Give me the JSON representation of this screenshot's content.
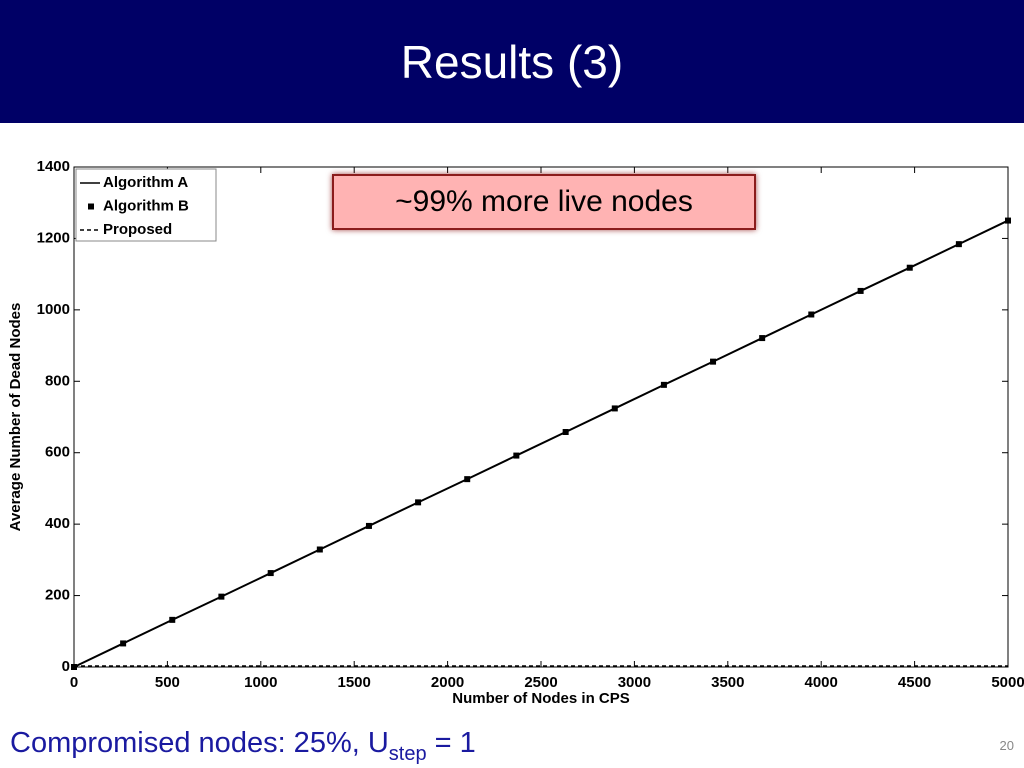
{
  "slide": {
    "title": "Results (3)",
    "caption": {
      "main": "Compromised nodes: 25%, U",
      "subscript": "step",
      "rest": " = 1"
    },
    "page_number": "20"
  },
  "chart_data": {
    "type": "line",
    "xlabel": "Number of Nodes in CPS",
    "ylabel": "Average Number of Dead Nodes",
    "annotation": "~99% more live nodes",
    "x": [
      0,
      263,
      526,
      789,
      1053,
      1316,
      1579,
      1842,
      2105,
      2368,
      2632,
      2895,
      3158,
      3421,
      3684,
      3947,
      4211,
      4474,
      4737,
      5000
    ],
    "series": [
      {
        "name": "Algorithm A",
        "color": "#000000",
        "style": "solid",
        "values": [
          0,
          66,
          132,
          197,
          263,
          329,
          395,
          461,
          526,
          592,
          658,
          724,
          790,
          855,
          921,
          987,
          1053,
          1118,
          1184,
          1250
        ]
      },
      {
        "name": "Algorithm B",
        "color": "#000000",
        "style": "markers",
        "values": [
          0,
          66,
          132,
          197,
          263,
          329,
          395,
          461,
          526,
          592,
          658,
          724,
          790,
          855,
          921,
          987,
          1053,
          1118,
          1184,
          1250
        ]
      },
      {
        "name": "Proposed",
        "color": "#000000",
        "style": "dashed",
        "values": [
          2,
          2,
          2,
          2,
          2,
          2,
          2,
          2,
          2,
          2,
          2,
          2,
          2,
          2,
          2,
          2,
          2,
          2,
          2,
          2
        ]
      }
    ],
    "xlim": [
      0,
      5000
    ],
    "xticks": [
      0,
      500,
      1000,
      1500,
      2000,
      2500,
      3000,
      3500,
      4000,
      4500,
      5000
    ],
    "ylim": [
      0,
      1400
    ],
    "yticks": [
      0,
      200,
      400,
      600,
      800,
      1000,
      1200,
      1400
    ],
    "legend": "upper left",
    "grid": false
  }
}
